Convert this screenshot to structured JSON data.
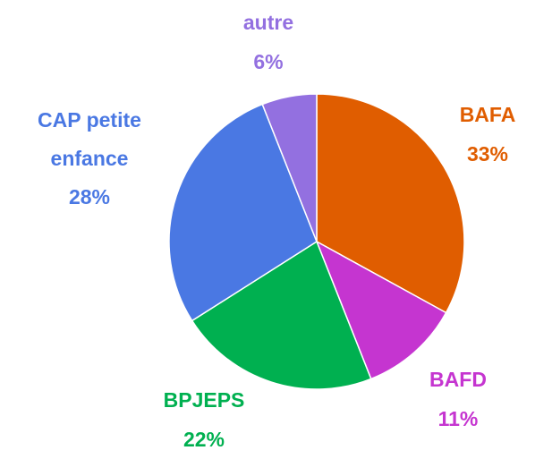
{
  "chart_data": {
    "type": "pie",
    "categories": [
      "BAFA",
      "BAFD",
      "BPJEPS",
      "CAP petite enfance",
      "autre"
    ],
    "values": [
      33,
      11,
      22,
      28,
      6
    ],
    "value_labels": [
      "33%",
      "11%",
      "22%",
      "28%",
      "6%"
    ],
    "colors": [
      "#e05d00",
      "#c535d0",
      "#00b050",
      "#4a78e3",
      "#9370e0"
    ]
  }
}
